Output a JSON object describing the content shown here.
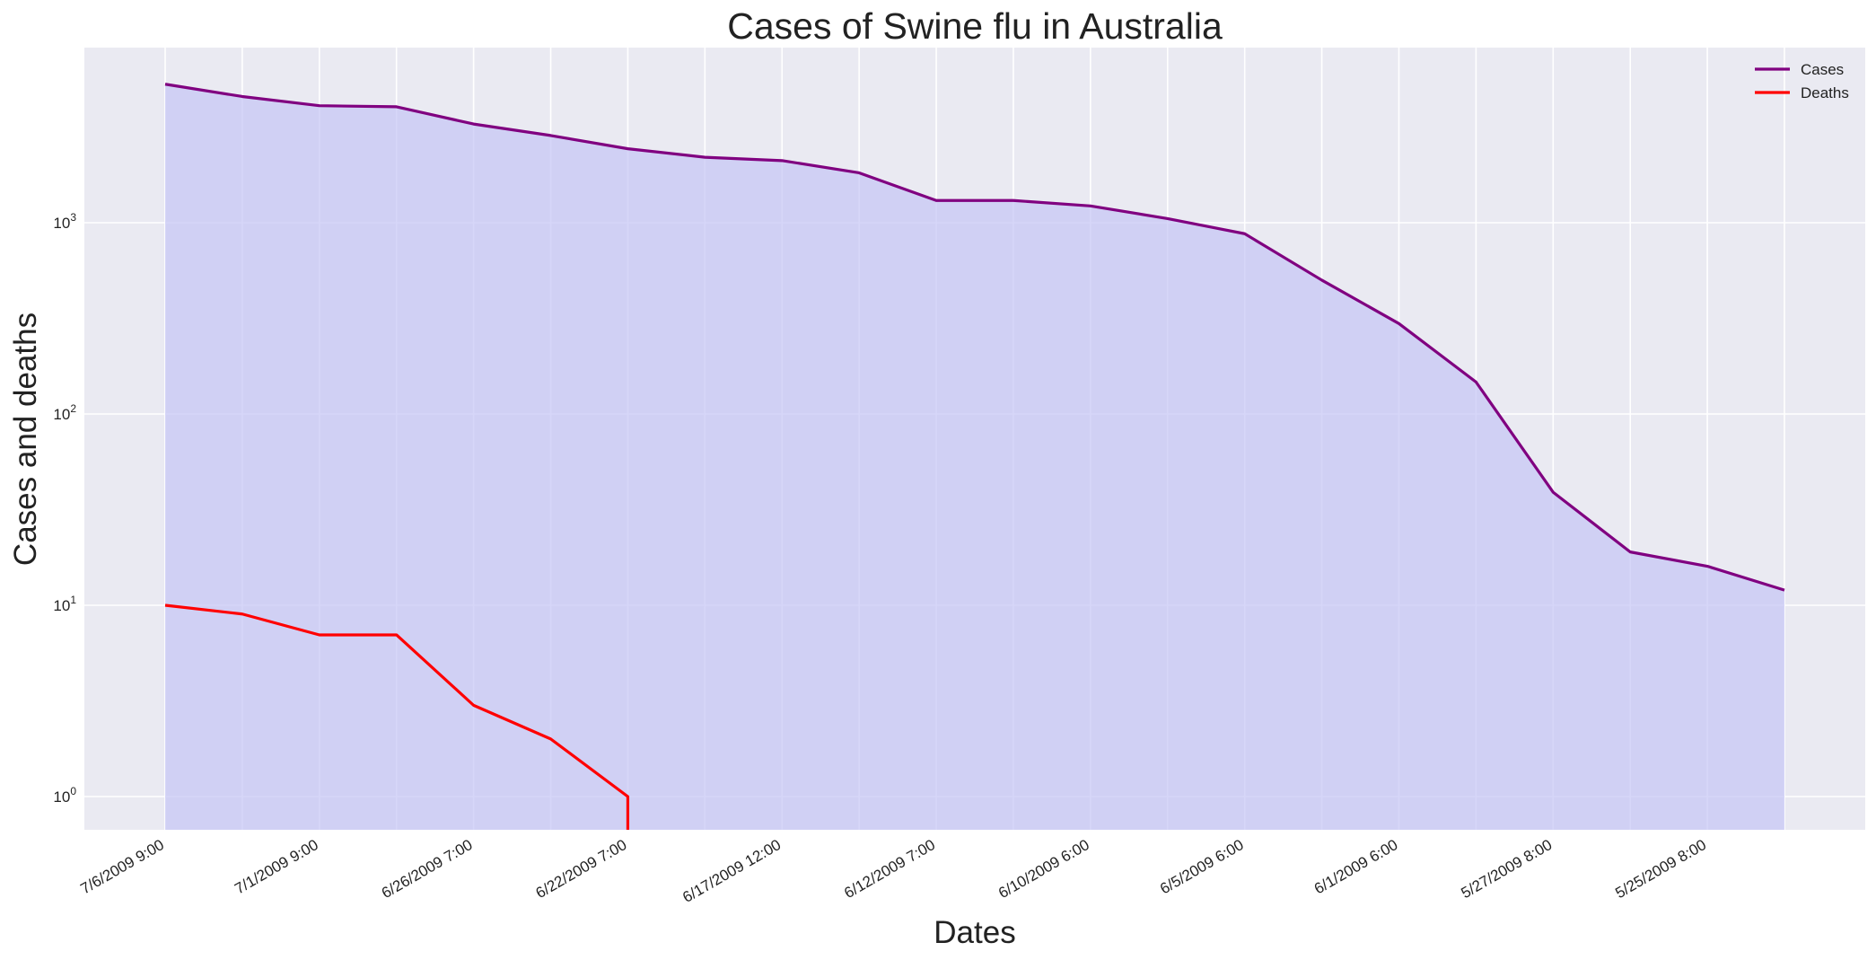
{
  "chart_data": {
    "type": "line",
    "title": "Cases of Swine flu in Australia",
    "xlabel": "Dates",
    "ylabel": "Cases and deaths",
    "yscale": "log",
    "ylim": [
      0.65,
      7000
    ],
    "y_ticks": [
      {
        "base": "10",
        "exp": "0",
        "value": 1
      },
      {
        "base": "10",
        "exp": "1",
        "value": 10
      },
      {
        "base": "10",
        "exp": "2",
        "value": 100
      },
      {
        "base": "10",
        "exp": "3",
        "value": 1000
      }
    ],
    "x_tick_labels": [
      "7/6/2009 9:00",
      "7/1/2009 9:00",
      "6/26/2009 7:00",
      "6/22/2009 7:00",
      "6/17/2009 12:00",
      "6/12/2009 7:00",
      "6/10/2009 6:00",
      "6/5/2009 6:00",
      "6/1/2009 6:00",
      "5/27/2009 8:00",
      "5/25/2009 8:00"
    ],
    "x_tick_every": 2,
    "grid": true,
    "legend_position": "top-right",
    "series": [
      {
        "name": "Cases",
        "color": "#800080",
        "fill": true,
        "fill_color": "#c5c5f5",
        "values": [
          5298,
          4568,
          4090,
          4038,
          3280,
          2857,
          2436,
          2199,
          2112,
          1823,
          1307,
          1307,
          1224,
          1051,
          876,
          501,
          297,
          147,
          39,
          19,
          16,
          12
        ]
      },
      {
        "name": "Deaths",
        "color": "#ff0000",
        "fill": false,
        "values": [
          10,
          9,
          7,
          7,
          3,
          2,
          1,
          0,
          0,
          0,
          0,
          0,
          0,
          0,
          0,
          0,
          0,
          0,
          0,
          0,
          0,
          0
        ]
      }
    ]
  }
}
